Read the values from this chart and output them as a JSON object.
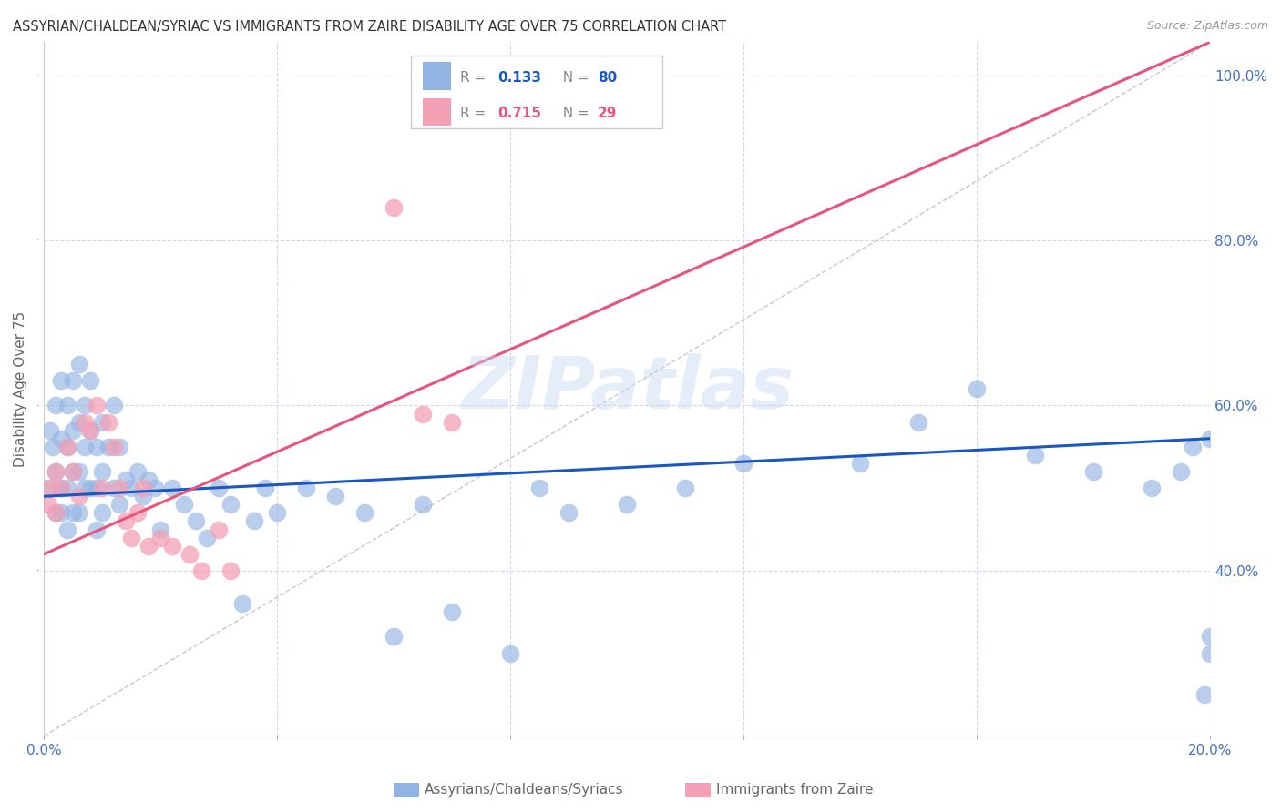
{
  "title": "ASSYRIAN/CHALDEAN/SYRIAC VS IMMIGRANTS FROM ZAIRE DISABILITY AGE OVER 75 CORRELATION CHART",
  "source": "Source: ZipAtlas.com",
  "ylabel": "Disability Age Over 75",
  "xaxis_label_blue": "Assyrians/Chaldeans/Syriacs",
  "xaxis_label_pink": "Immigrants from Zaire",
  "xlim": [
    0.0,
    0.2
  ],
  "ylim": [
    0.2,
    1.04
  ],
  "xticks": [
    0.0,
    0.04,
    0.08,
    0.12,
    0.16,
    0.2
  ],
  "yticks": [
    0.4,
    0.6,
    0.8,
    1.0
  ],
  "blue_R": 0.133,
  "blue_N": 80,
  "pink_R": 0.715,
  "pink_N": 29,
  "blue_color": "#92b4e3",
  "pink_color": "#f4a0b5",
  "blue_line_color": "#1a56c4",
  "pink_line_color": "#e8547a",
  "dash_line_color": "#c8c8c8",
  "background_color": "#ffffff",
  "grid_color": "#d0d8ee",
  "title_color": "#333333",
  "axis_label_color": "#666666",
  "tick_label_color": "#4472c4",
  "source_color": "#999999",
  "watermark": "ZIPatlas",
  "blue_line_x0": 0.0,
  "blue_line_x1": 0.2,
  "blue_line_y0": 0.49,
  "blue_line_y1": 0.56,
  "pink_line_x0": 0.0,
  "pink_line_x1": 0.2,
  "pink_line_y0": 0.42,
  "pink_line_y1": 1.04,
  "dash_line_x0": 0.0,
  "dash_line_x1": 0.2,
  "dash_line_y0": 0.2,
  "dash_line_y1": 1.04,
  "blue_scatter_x": [
    0.0008,
    0.001,
    0.0015,
    0.002,
    0.002,
    0.002,
    0.003,
    0.003,
    0.003,
    0.003,
    0.004,
    0.004,
    0.004,
    0.004,
    0.005,
    0.005,
    0.005,
    0.005,
    0.006,
    0.006,
    0.006,
    0.006,
    0.007,
    0.007,
    0.007,
    0.008,
    0.008,
    0.008,
    0.009,
    0.009,
    0.009,
    0.01,
    0.01,
    0.01,
    0.011,
    0.012,
    0.012,
    0.013,
    0.013,
    0.014,
    0.015,
    0.016,
    0.017,
    0.018,
    0.019,
    0.02,
    0.022,
    0.024,
    0.026,
    0.028,
    0.03,
    0.032,
    0.034,
    0.036,
    0.038,
    0.04,
    0.045,
    0.05,
    0.055,
    0.06,
    0.065,
    0.07,
    0.08,
    0.085,
    0.09,
    0.1,
    0.11,
    0.12,
    0.14,
    0.15,
    0.16,
    0.17,
    0.18,
    0.19,
    0.195,
    0.197,
    0.199,
    0.2,
    0.2,
    0.2
  ],
  "blue_scatter_y": [
    0.5,
    0.57,
    0.55,
    0.6,
    0.52,
    0.47,
    0.63,
    0.56,
    0.5,
    0.47,
    0.6,
    0.55,
    0.5,
    0.45,
    0.63,
    0.57,
    0.52,
    0.47,
    0.65,
    0.58,
    0.52,
    0.47,
    0.6,
    0.55,
    0.5,
    0.63,
    0.57,
    0.5,
    0.55,
    0.5,
    0.45,
    0.58,
    0.52,
    0.47,
    0.55,
    0.6,
    0.5,
    0.55,
    0.48,
    0.51,
    0.5,
    0.52,
    0.49,
    0.51,
    0.5,
    0.45,
    0.5,
    0.48,
    0.46,
    0.44,
    0.5,
    0.48,
    0.36,
    0.46,
    0.5,
    0.47,
    0.5,
    0.49,
    0.47,
    0.32,
    0.48,
    0.35,
    0.3,
    0.5,
    0.47,
    0.48,
    0.5,
    0.53,
    0.53,
    0.58,
    0.62,
    0.54,
    0.52,
    0.5,
    0.52,
    0.55,
    0.25,
    0.3,
    0.32,
    0.56
  ],
  "pink_scatter_x": [
    0.0008,
    0.001,
    0.002,
    0.002,
    0.003,
    0.004,
    0.005,
    0.006,
    0.007,
    0.008,
    0.009,
    0.01,
    0.011,
    0.012,
    0.013,
    0.014,
    0.015,
    0.016,
    0.017,
    0.018,
    0.02,
    0.022,
    0.025,
    0.027,
    0.03,
    0.032,
    0.06,
    0.065,
    0.07
  ],
  "pink_scatter_y": [
    0.48,
    0.5,
    0.52,
    0.47,
    0.5,
    0.55,
    0.52,
    0.49,
    0.58,
    0.57,
    0.6,
    0.5,
    0.58,
    0.55,
    0.5,
    0.46,
    0.44,
    0.47,
    0.5,
    0.43,
    0.44,
    0.43,
    0.42,
    0.4,
    0.45,
    0.4,
    0.84,
    0.59,
    0.58
  ]
}
